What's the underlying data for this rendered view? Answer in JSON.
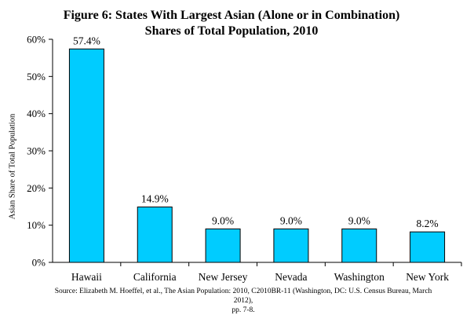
{
  "chart_data": {
    "type": "bar",
    "title_line1": "Figure 6: States With Largest Asian (Alone or in Combination)",
    "title_line2": "Shares of Total Population, 2010",
    "ylabel": "Asian Share of Total Population",
    "xlabel": "",
    "categories": [
      "Hawaii",
      "California",
      "New Jersey",
      "Nevada",
      "Washington",
      "New York"
    ],
    "values": [
      57.4,
      14.9,
      9.0,
      9.0,
      9.0,
      8.2
    ],
    "value_labels": [
      "57.4%",
      "14.9%",
      "9.0%",
      "9.0%",
      "9.0%",
      "8.2%"
    ],
    "ylim": [
      0,
      60
    ],
    "yticks": [
      0,
      10,
      20,
      30,
      40,
      50,
      60
    ],
    "ytick_labels": [
      "0%",
      "10%",
      "20%",
      "30%",
      "40%",
      "50%",
      "60%"
    ],
    "bar_color": "#00CCFF",
    "grid": false,
    "source_line1": "Source: Elizabeth M. Hoeffel, et al., The Asian Population: 2010, C2010BR-11 (Washington, DC: U.S. Census Bureau, March 2012),",
    "source_line2": "pp. 7-8."
  }
}
